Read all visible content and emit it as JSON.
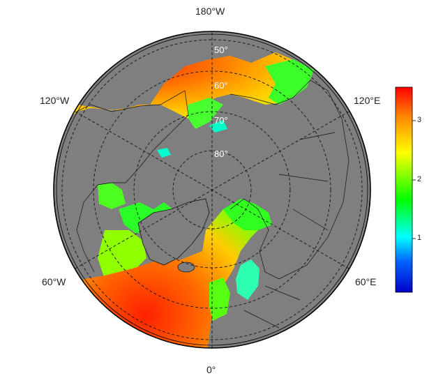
{
  "map": {
    "projection": "north-polar-stereographic",
    "land_color": "#7f7f7f",
    "ocean_field": "gridded values",
    "longitude_labels": {
      "top": "180°W",
      "upper_left": "120°W",
      "upper_right": "120°E",
      "lower_left": "60°W",
      "lower_right": "60°E",
      "bottom": "0°"
    },
    "latitude_labels": [
      "50°",
      "60°",
      "70°",
      "80°"
    ],
    "graticule": "dashed"
  },
  "colorbar": {
    "ticks": [
      "1",
      "2",
      "3"
    ],
    "range": [
      0.1,
      3.5
    ],
    "colors": [
      "#0000c8",
      "#0064ff",
      "#00ffff",
      "#00ff00",
      "#ffff00",
      "#ff8c00",
      "#ff0000"
    ]
  }
}
